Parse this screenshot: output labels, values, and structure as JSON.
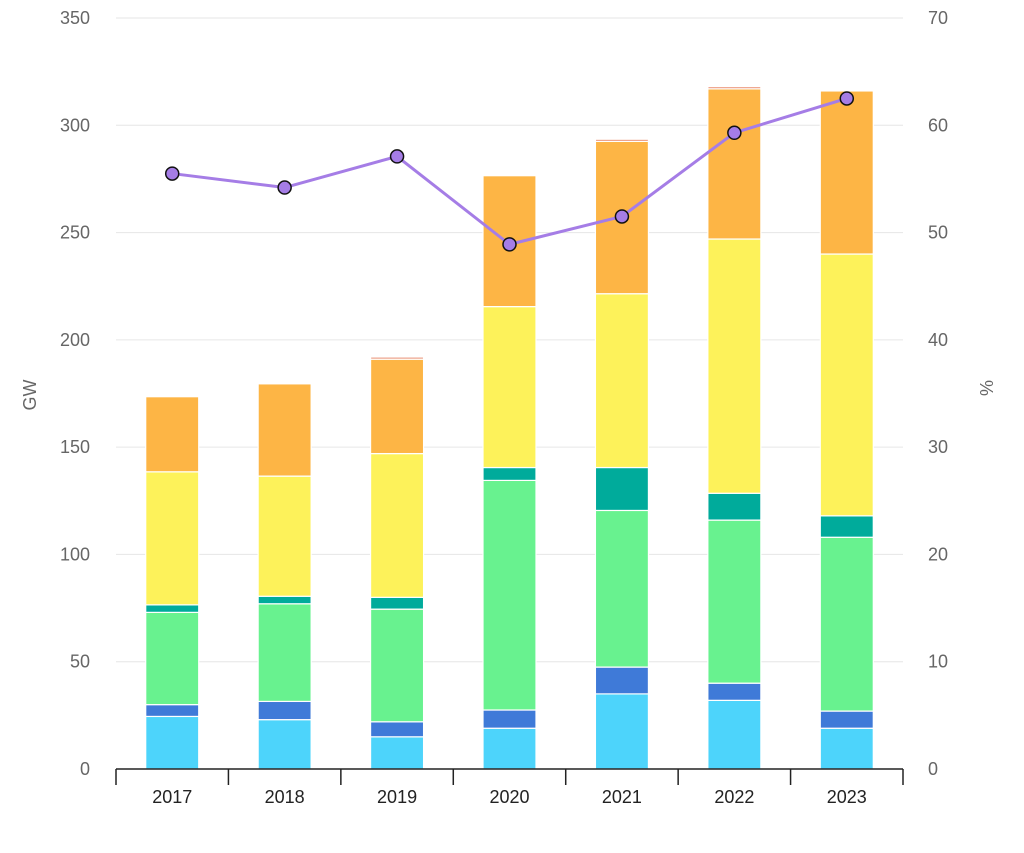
{
  "chart_data": {
    "type": "bar",
    "stacked": true,
    "categories": [
      "2017",
      "2018",
      "2019",
      "2020",
      "2021",
      "2022",
      "2023"
    ],
    "series": [
      {
        "color": "#4dd4fb",
        "values": [
          24.5,
          23,
          15,
          19,
          35,
          32,
          19
        ]
      },
      {
        "color": "#3f7ad8",
        "values": [
          5.5,
          8.5,
          7,
          8.5,
          12.5,
          8,
          8
        ]
      },
      {
        "color": "#68f28f",
        "values": [
          43,
          45.5,
          52.5,
          107,
          73,
          76,
          81
        ]
      },
      {
        "color": "#00ab9b",
        "values": [
          3.5,
          3.5,
          5.5,
          6,
          20,
          12.5,
          10
        ]
      },
      {
        "color": "#fdf25a",
        "values": [
          62,
          56,
          67,
          75,
          81,
          118.5,
          122
        ]
      },
      {
        "color": "#fdb545",
        "values": [
          35,
          43,
          44,
          61,
          71,
          70,
          76
        ]
      },
      {
        "color": "#e98a6b",
        "values": [
          0,
          0,
          1,
          0,
          1,
          1,
          0
        ]
      }
    ],
    "line": {
      "color": "#a57de6",
      "axis": "right",
      "values": [
        55.5,
        54.2,
        57.1,
        48.9,
        51.5,
        59.3,
        62.5
      ]
    },
    "ylabel": "GW",
    "y2label": "%",
    "ylim": [
      0,
      350
    ],
    "y2lim": [
      0,
      70
    ],
    "yticks": [
      "0",
      "50",
      "100",
      "150",
      "200",
      "250",
      "300",
      "350"
    ],
    "y2ticks": [
      "0",
      "10",
      "20",
      "30",
      "40",
      "50",
      "60",
      "70"
    ],
    "grid": true
  }
}
